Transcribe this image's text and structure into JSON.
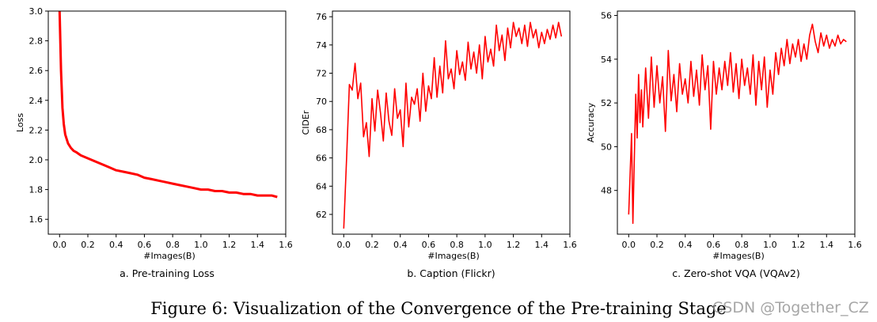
{
  "figure_caption": "Figure 6: Visualization of the Convergence of the Pre-training Stage",
  "watermark": "CSDN @Together_CZ",
  "line_color": "#ff0000",
  "chart_data": [
    {
      "type": "line",
      "subcaption": "a. Pre-training Loss",
      "xlabel": "#Images(B)",
      "ylabel": "Loss",
      "xlim": [
        -0.08,
        1.6
      ],
      "ylim": [
        1.5,
        3.0
      ],
      "xticks": [
        "0.0",
        "0.2",
        "0.4",
        "0.6",
        "0.8",
        "1.0",
        "1.2",
        "1.4",
        "1.6"
      ],
      "yticks": [
        "1.6",
        "1.8",
        "2.0",
        "2.2",
        "2.4",
        "2.6",
        "2.8",
        "3.0"
      ],
      "series": [
        {
          "name": "Loss",
          "x": [
            0.0,
            0.01,
            0.02,
            0.03,
            0.04,
            0.06,
            0.08,
            0.1,
            0.12,
            0.15,
            0.2,
            0.25,
            0.3,
            0.35,
            0.4,
            0.45,
            0.5,
            0.55,
            0.6,
            0.65,
            0.7,
            0.75,
            0.8,
            0.85,
            0.9,
            0.95,
            1.0,
            1.05,
            1.1,
            1.15,
            1.2,
            1.25,
            1.3,
            1.35,
            1.4,
            1.45,
            1.5,
            1.54
          ],
          "y": [
            3.0,
            2.6,
            2.35,
            2.24,
            2.17,
            2.11,
            2.08,
            2.06,
            2.05,
            2.03,
            2.01,
            1.99,
            1.97,
            1.95,
            1.93,
            1.92,
            1.91,
            1.9,
            1.88,
            1.87,
            1.86,
            1.85,
            1.84,
            1.83,
            1.82,
            1.81,
            1.8,
            1.8,
            1.79,
            1.79,
            1.78,
            1.78,
            1.77,
            1.77,
            1.76,
            1.76,
            1.76,
            1.75
          ]
        }
      ]
    },
    {
      "type": "line",
      "subcaption": "b. Caption (Flickr)",
      "xlabel": "#Images(B)",
      "ylabel": "CIDEr",
      "xlim": [
        -0.08,
        1.6
      ],
      "ylim": [
        60.6,
        76.4
      ],
      "xticks": [
        "0.0",
        "0.2",
        "0.4",
        "0.6",
        "0.8",
        "1.0",
        "1.2",
        "1.4",
        "1.6"
      ],
      "yticks": [
        "62",
        "64",
        "66",
        "68",
        "70",
        "72",
        "74",
        "76"
      ],
      "series": [
        {
          "name": "CIDEr",
          "x": [
            0.0,
            0.02,
            0.04,
            0.06,
            0.08,
            0.1,
            0.12,
            0.14,
            0.16,
            0.18,
            0.2,
            0.22,
            0.24,
            0.26,
            0.28,
            0.3,
            0.32,
            0.34,
            0.36,
            0.38,
            0.4,
            0.42,
            0.44,
            0.46,
            0.48,
            0.5,
            0.52,
            0.54,
            0.56,
            0.58,
            0.6,
            0.62,
            0.64,
            0.66,
            0.68,
            0.7,
            0.72,
            0.74,
            0.76,
            0.78,
            0.8,
            0.82,
            0.84,
            0.86,
            0.88,
            0.9,
            0.92,
            0.94,
            0.96,
            0.98,
            1.0,
            1.02,
            1.04,
            1.06,
            1.08,
            1.1,
            1.12,
            1.14,
            1.16,
            1.18,
            1.2,
            1.22,
            1.24,
            1.26,
            1.28,
            1.3,
            1.32,
            1.34,
            1.36,
            1.38,
            1.4,
            1.42,
            1.44,
            1.46,
            1.48,
            1.5,
            1.52,
            1.54
          ],
          "y": [
            61.0,
            66.0,
            71.2,
            70.8,
            72.7,
            70.2,
            71.3,
            67.5,
            68.5,
            66.1,
            70.2,
            67.9,
            70.8,
            69.2,
            67.2,
            70.6,
            68.6,
            67.6,
            70.9,
            68.8,
            69.4,
            66.8,
            71.3,
            68.2,
            70.3,
            69.8,
            70.9,
            68.6,
            72.0,
            69.3,
            71.1,
            70.2,
            73.1,
            70.3,
            72.5,
            70.6,
            74.3,
            71.6,
            72.3,
            70.9,
            73.6,
            71.9,
            72.8,
            71.5,
            74.2,
            72.3,
            73.5,
            72.0,
            74.0,
            71.6,
            74.6,
            72.8,
            73.7,
            72.5,
            75.4,
            73.6,
            74.7,
            72.9,
            75.2,
            73.8,
            75.6,
            74.6,
            75.2,
            74.1,
            75.4,
            73.9,
            75.6,
            74.5,
            75.1,
            73.8,
            74.9,
            74.1,
            75.1,
            74.4,
            75.4,
            74.5,
            75.6,
            74.6
          ]
        }
      ]
    },
    {
      "type": "line",
      "subcaption": "c. Zero-shot VQA (VQAv2)",
      "xlabel": "#Images(B)",
      "ylabel": "Accuracy",
      "xlim": [
        -0.08,
        1.6
      ],
      "ylim": [
        46.0,
        56.2
      ],
      "xticks": [
        "0.0",
        "0.2",
        "0.4",
        "0.6",
        "0.8",
        "1.0",
        "1.2",
        "1.4",
        "1.6"
      ],
      "yticks": [
        "48",
        "50",
        "52",
        "54",
        "56"
      ],
      "series": [
        {
          "name": "Accuracy",
          "x": [
            0.0,
            0.02,
            0.03,
            0.05,
            0.06,
            0.07,
            0.08,
            0.09,
            0.1,
            0.12,
            0.14,
            0.16,
            0.18,
            0.2,
            0.22,
            0.24,
            0.26,
            0.28,
            0.3,
            0.32,
            0.34,
            0.36,
            0.38,
            0.4,
            0.42,
            0.44,
            0.46,
            0.48,
            0.5,
            0.52,
            0.54,
            0.56,
            0.58,
            0.6,
            0.62,
            0.64,
            0.66,
            0.68,
            0.7,
            0.72,
            0.74,
            0.76,
            0.78,
            0.8,
            0.82,
            0.84,
            0.86,
            0.88,
            0.9,
            0.92,
            0.94,
            0.96,
            0.98,
            1.0,
            1.02,
            1.04,
            1.06,
            1.08,
            1.1,
            1.12,
            1.14,
            1.16,
            1.18,
            1.2,
            1.22,
            1.24,
            1.26,
            1.28,
            1.3,
            1.32,
            1.34,
            1.36,
            1.38,
            1.4,
            1.42,
            1.44,
            1.46,
            1.48,
            1.5,
            1.52,
            1.54
          ],
          "y": [
            46.9,
            50.6,
            46.5,
            52.4,
            50.4,
            53.3,
            51.1,
            52.6,
            50.9,
            53.6,
            51.3,
            54.1,
            51.8,
            53.7,
            52.0,
            53.2,
            50.7,
            54.4,
            52.1,
            53.3,
            51.6,
            53.8,
            52.4,
            53.1,
            52.0,
            53.9,
            52.3,
            53.5,
            51.9,
            54.2,
            52.6,
            53.7,
            50.8,
            53.9,
            52.4,
            53.6,
            52.6,
            53.9,
            52.8,
            54.3,
            52.5,
            53.8,
            52.2,
            54.0,
            52.8,
            53.6,
            52.4,
            54.2,
            51.9,
            53.9,
            52.6,
            54.1,
            51.8,
            53.5,
            52.4,
            54.3,
            53.3,
            54.5,
            53.7,
            54.9,
            53.8,
            54.7,
            54.1,
            54.9,
            53.9,
            54.7,
            54.0,
            55.1,
            55.6,
            54.8,
            54.3,
            55.2,
            54.6,
            55.1,
            54.5,
            54.9,
            54.6,
            55.1,
            54.7,
            54.9,
            54.8
          ]
        }
      ]
    }
  ]
}
